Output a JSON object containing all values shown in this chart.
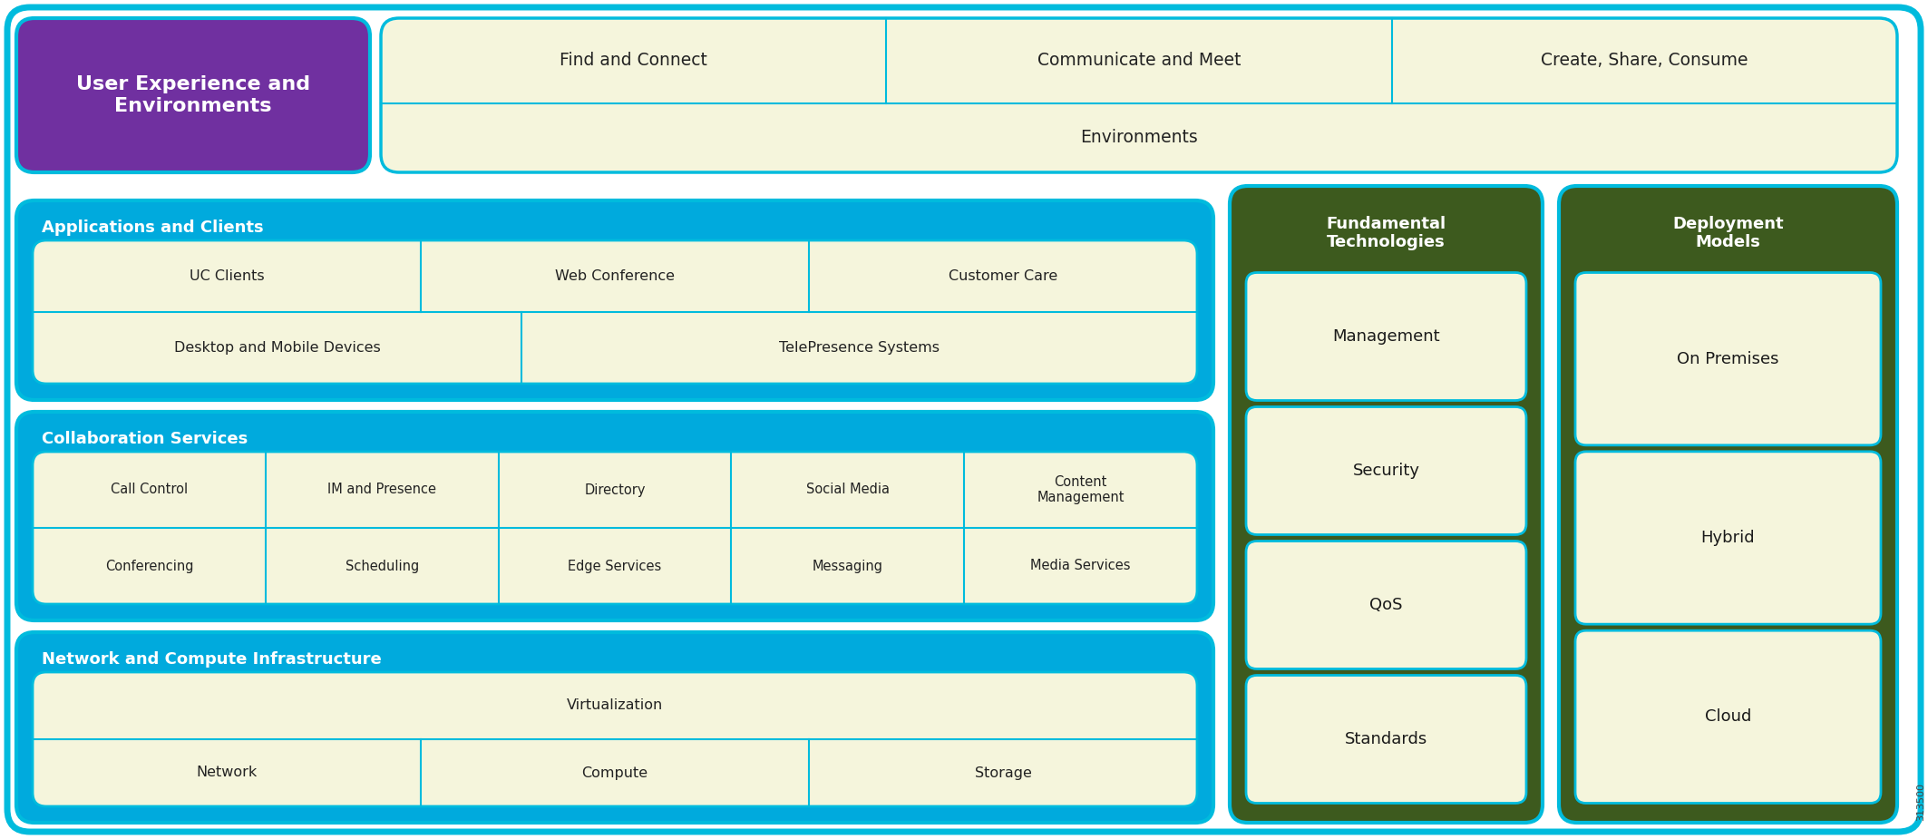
{
  "bg_color": "#ffffff",
  "outer_border_color": "#00bbdd",
  "outer_border_lw": 5,
  "top_section": {
    "bg": "#7030a0",
    "border": "#00bbdd",
    "label": "User Experience and\nEnvironments",
    "label_color": "#ffffff",
    "label_fontsize": 16,
    "inner_bg": "#f5f5dc",
    "inner_border": "#00bbdd",
    "cells_row1": [
      "Find and Connect",
      "Communicate and Meet",
      "Create, Share, Consume"
    ],
    "cells_row2": [
      "Environments"
    ],
    "cell_text_color": "#222222",
    "cell_fontsize": 13.5
  },
  "apps": {
    "label": "Applications and Clients",
    "label_color": "#ffffff",
    "label_fontsize": 13,
    "bg": "#00aadd",
    "border": "#00bbdd",
    "inner_bg": "#f5f5dc",
    "inner_border": "#00bbdd",
    "row1": [
      "UC Clients",
      "Web Conference",
      "Customer Care"
    ],
    "row2_left": "Desktop and Mobile Devices",
    "row2_right": "TelePresence Systems",
    "row2_split": 0.42,
    "cell_text_color": "#222222",
    "cell_fontsize": 11.5
  },
  "collab": {
    "label": "Collaboration Services",
    "label_color": "#ffffff",
    "label_fontsize": 13,
    "bg": "#00aadd",
    "border": "#00bbdd",
    "inner_bg": "#f5f5dc",
    "inner_border": "#00bbdd",
    "rows": [
      [
        "Call Control",
        "IM and Presence",
        "Directory",
        "Social Media",
        "Content\nManagement"
      ],
      [
        "Conferencing",
        "Scheduling",
        "Edge Services",
        "Messaging",
        "Media Services"
      ]
    ],
    "cell_text_color": "#222222",
    "cell_fontsize": 10.5
  },
  "network": {
    "label": "Network and Compute Infrastructure",
    "label_color": "#ffffff",
    "label_fontsize": 13,
    "bg": "#00aadd",
    "border": "#00bbdd",
    "inner_bg": "#f5f5dc",
    "inner_border": "#00bbdd",
    "row1": [
      "Virtualization"
    ],
    "row2": [
      "Network",
      "Compute",
      "Storage"
    ],
    "cell_text_color": "#222222",
    "cell_fontsize": 11.5
  },
  "fundamental": {
    "label": "Fundamental\nTechnologies",
    "label_color": "#ffffff",
    "label_fontsize": 13,
    "bg": "#3d5a1e",
    "border": "#00bbdd",
    "inner_bg": "#f5f5dc",
    "inner_border": "#00bbdd",
    "cells": [
      "Management",
      "Security",
      "QoS",
      "Standards"
    ],
    "cell_text_color": "#1a1a1a",
    "cell_fontsize": 13
  },
  "deployment": {
    "label": "Deployment\nModels",
    "label_color": "#ffffff",
    "label_fontsize": 13,
    "bg": "#3d5a1e",
    "border": "#00bbdd",
    "inner_bg": "#f5f5dc",
    "inner_border": "#00bbdd",
    "cells": [
      "On Premises",
      "Hybrid",
      "Cloud"
    ],
    "cell_text_color": "#1a1a1a",
    "cell_fontsize": 13
  },
  "watermark": "313500",
  "watermark_color": "#444444",
  "watermark_fontsize": 8
}
